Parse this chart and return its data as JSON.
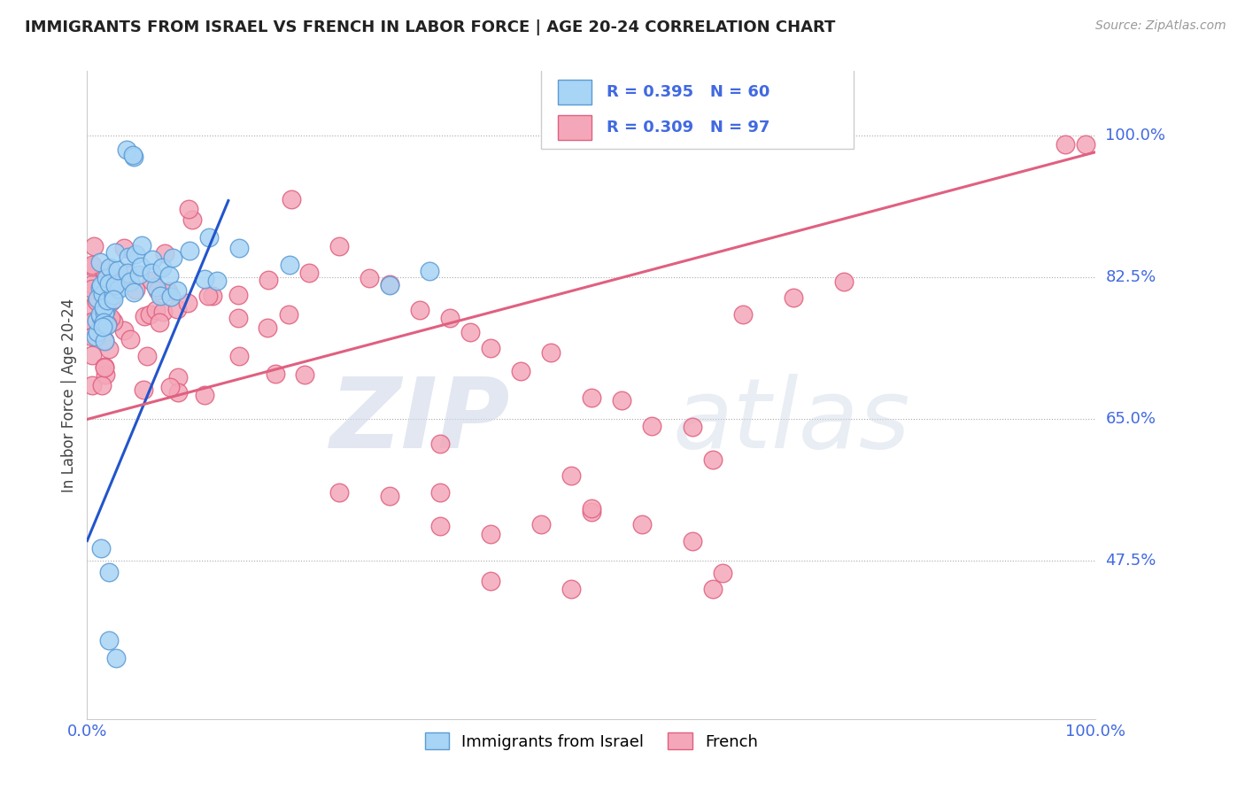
{
  "title": "IMMIGRANTS FROM ISRAEL VS FRENCH IN LABOR FORCE | AGE 20-24 CORRELATION CHART",
  "source_text": "Source: ZipAtlas.com",
  "ylabel": "In Labor Force | Age 20-24",
  "xlim": [
    0.0,
    1.0
  ],
  "ylim": [
    0.28,
    1.08
  ],
  "r_israel": 0.395,
  "n_israel": 60,
  "r_french": 0.309,
  "n_french": 97,
  "israel_fill": "#A8D4F5",
  "israel_edge": "#5B9BD5",
  "french_fill": "#F4A7B9",
  "french_edge": "#E06080",
  "trend_israel_color": "#2255CC",
  "trend_french_color": "#E06080",
  "legend_label_israel": "Immigrants from Israel",
  "legend_label_french": "French",
  "ytick_positions": [
    0.475,
    0.65,
    0.825,
    1.0
  ],
  "ytick_labels": [
    "47.5%",
    "65.0%",
    "82.5%",
    "100.0%"
  ],
  "tick_color": "#4169E1",
  "watermark_zip": "ZIP",
  "watermark_atlas": "atlas"
}
